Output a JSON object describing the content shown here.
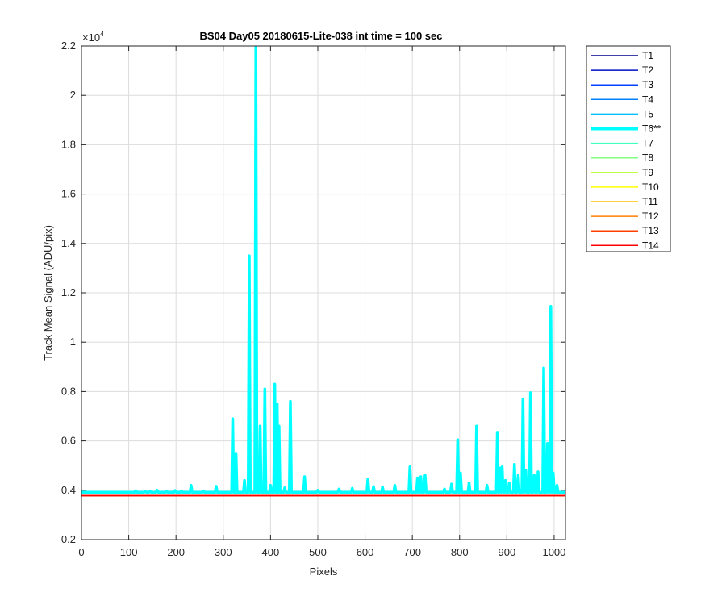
{
  "chart_data": {
    "type": "line",
    "title": "BS04 Day05 20180615-Lite-038 int time = 100 sec",
    "xlabel": "Pixels",
    "ylabel": "Track Mean Signal (ADU/pix)",
    "exponent_label_base": "×10",
    "exponent_label_power": "4",
    "xlim": [
      0,
      1024
    ],
    "ylim": [
      2000,
      22000
    ],
    "xticks": [
      0,
      100,
      200,
      300,
      400,
      500,
      600,
      700,
      800,
      900,
      1000
    ],
    "xtick_labels": [
      "0",
      "100",
      "200",
      "300",
      "400",
      "500",
      "600",
      "700",
      "800",
      "900",
      "1000"
    ],
    "yticks": [
      2000,
      4000,
      6000,
      8000,
      10000,
      12000,
      14000,
      16000,
      18000,
      20000,
      22000
    ],
    "ytick_labels": [
      "0.2",
      "0.4",
      "0.6",
      "0.8",
      "1",
      "1.2",
      "1.4",
      "1.6",
      "1.8",
      "2",
      "2.2"
    ],
    "grid": true,
    "legend_position": "outside-top-right",
    "baseline_series_value": 3780,
    "highlight_series": "T6**",
    "highlight_baseline": 3920,
    "highlight_peaks": [
      [
        115,
        3980
      ],
      [
        135,
        3950
      ],
      [
        145,
        3970
      ],
      [
        160,
        4000
      ],
      [
        180,
        3960
      ],
      [
        198,
        3990
      ],
      [
        212,
        3970
      ],
      [
        232,
        4200
      ],
      [
        258,
        3970
      ],
      [
        285,
        4160
      ],
      [
        320,
        6900
      ],
      [
        327,
        5500
      ],
      [
        345,
        4400
      ],
      [
        355,
        13500
      ],
      [
        369,
        22000
      ],
      [
        378,
        6600
      ],
      [
        388,
        8100
      ],
      [
        400,
        4200
      ],
      [
        409,
        8300
      ],
      [
        414,
        7500
      ],
      [
        418,
        6600
      ],
      [
        430,
        4100
      ],
      [
        442,
        7600
      ],
      [
        472,
        4550
      ],
      [
        500,
        4000
      ],
      [
        545,
        4050
      ],
      [
        573,
        4080
      ],
      [
        606,
        4450
      ],
      [
        618,
        4150
      ],
      [
        637,
        4130
      ],
      [
        663,
        4200
      ],
      [
        695,
        4950
      ],
      [
        711,
        4500
      ],
      [
        718,
        4550
      ],
      [
        727,
        4600
      ],
      [
        768,
        4050
      ],
      [
        783,
        4250
      ],
      [
        796,
        6050
      ],
      [
        802,
        4700
      ],
      [
        820,
        4300
      ],
      [
        836,
        6600
      ],
      [
        858,
        4200
      ],
      [
        880,
        6350
      ],
      [
        885,
        4900
      ],
      [
        890,
        4950
      ],
      [
        897,
        4400
      ],
      [
        905,
        4300
      ],
      [
        916,
        5050
      ],
      [
        924,
        4600
      ],
      [
        934,
        7700
      ],
      [
        940,
        4800
      ],
      [
        950,
        7950
      ],
      [
        958,
        4600
      ],
      [
        966,
        4750
      ],
      [
        978,
        8950
      ],
      [
        986,
        5900
      ],
      [
        993,
        11450
      ],
      [
        998,
        4700
      ],
      [
        1006,
        4200
      ],
      [
        1018,
        3900
      ]
    ],
    "series": [
      {
        "name": "T1",
        "color": "#00008f",
        "value": 3780
      },
      {
        "name": "T2",
        "color": "#0010c8",
        "value": 3780
      },
      {
        "name": "T3",
        "color": "#0040ff",
        "value": 3780
      },
      {
        "name": "T4",
        "color": "#0080ff",
        "value": 3780
      },
      {
        "name": "T5",
        "color": "#00bfff",
        "value": 3780
      },
      {
        "name": "T6**",
        "color": "#00ffff",
        "value": 3920,
        "highlight": true
      },
      {
        "name": "T7",
        "color": "#40ffbf",
        "value": 3780
      },
      {
        "name": "T8",
        "color": "#80ff80",
        "value": 3780
      },
      {
        "name": "T9",
        "color": "#bfff40",
        "value": 3780
      },
      {
        "name": "T10",
        "color": "#ffff00",
        "value": 3780
      },
      {
        "name": "T11",
        "color": "#ffbf00",
        "value": 3780
      },
      {
        "name": "T12",
        "color": "#ff8000",
        "value": 3780
      },
      {
        "name": "T13",
        "color": "#ff4000",
        "value": 3780
      },
      {
        "name": "T14",
        "color": "#ff0000",
        "value": 3780
      }
    ]
  }
}
